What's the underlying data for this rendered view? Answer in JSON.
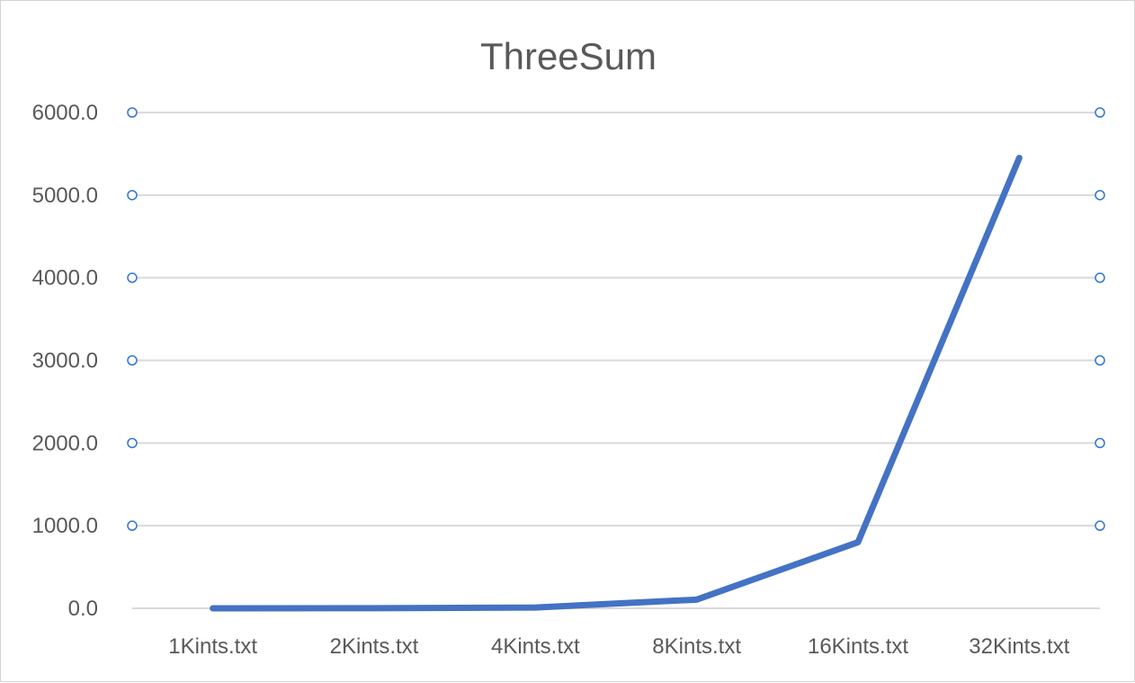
{
  "chart_data": {
    "type": "line",
    "title": "ThreeSum",
    "xlabel": "",
    "ylabel": "",
    "categories": [
      "1Kints.txt",
      "2Kints.txt",
      "4Kints.txt",
      "8Kints.txt",
      "16Kints.txt",
      "32Kints.txt"
    ],
    "series": [
      {
        "values": [
          0.1,
          1.0,
          10.0,
          105.0,
          800.0,
          5450.0
        ],
        "color": "#4472c4"
      }
    ],
    "ylim": [
      0,
      6000
    ],
    "yticks": [
      "0.0",
      "1000.0",
      "2000.0",
      "3000.0",
      "4000.0",
      "5000.0",
      "6000.0"
    ],
    "grid": true,
    "legend": "none",
    "gridline_color": "#d9d9d9",
    "handle_color": "#2f75d6"
  }
}
